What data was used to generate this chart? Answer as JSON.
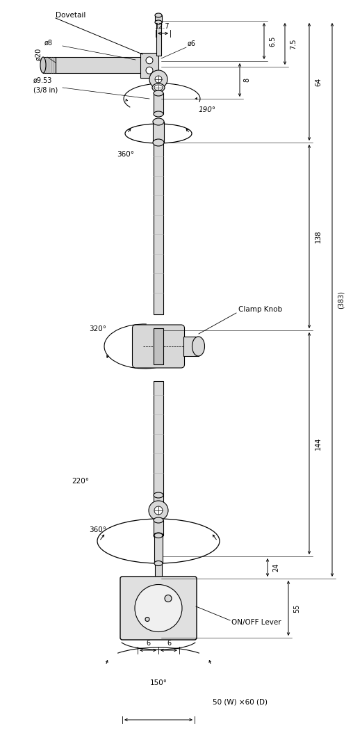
{
  "fig_width": 5.08,
  "fig_height": 10.77,
  "dpi": 100,
  "bg_color": "#ffffff",
  "line_color": "#000000",
  "part_fill": "#d8d8d8",
  "part_edge": "#000000",
  "annotations": {
    "dovetail": "Dovetail",
    "clamp_knob": "Clamp Knob",
    "on_off_lever": "ON/OFF Lever",
    "d8": "ø8",
    "d6": "ø6",
    "d20": "ø20",
    "d9_53": "ø9.53",
    "d9_53_in": "(3/8 in)",
    "dim_12_7": "12.7",
    "dim_6_5": "6.5",
    "dim_7_5": "7.5",
    "dim_8": "8",
    "dim_64": "64",
    "dim_138": "138",
    "dim_383": "(383)",
    "dim_144": "144",
    "dim_24": "24",
    "dim_55": "55",
    "dim_6a": "6",
    "dim_6b": "6",
    "dim_150": "150°",
    "dim_50x60": "50 (W) ×60 (D)",
    "angle_190": "190°",
    "angle_360a": "360°",
    "angle_320": "320°",
    "angle_220": "220°",
    "angle_360b": "360°"
  }
}
